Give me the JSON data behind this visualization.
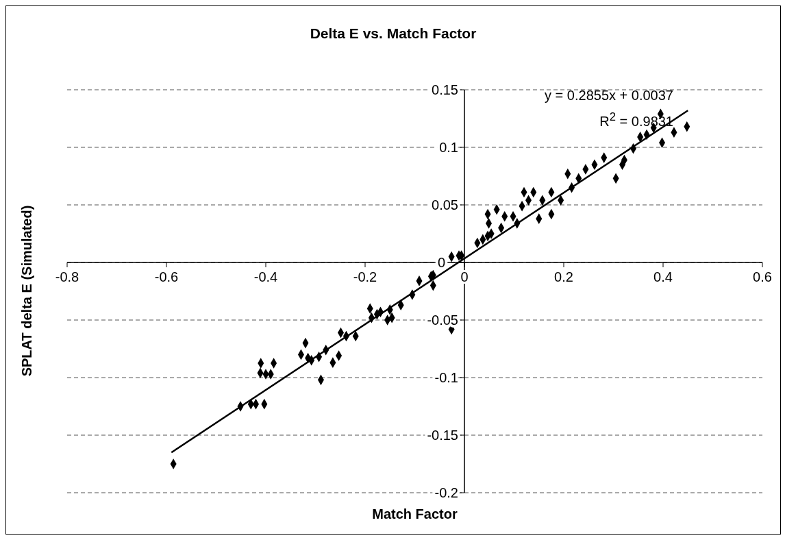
{
  "chart_data": {
    "type": "scatter",
    "title": "Delta E vs. Match Factor",
    "xlabel": "Match Factor",
    "ylabel": "SPLAT delta E (Simulated)",
    "annotations": [
      "y = 0.2855x + 0.0037",
      "R$^{2}$ = 0.9831"
    ],
    "xlim": [
      -0.8,
      0.6
    ],
    "xticks": [
      -0.8,
      -0.6,
      -0.4,
      -0.2,
      0,
      0.2,
      0.4,
      0.6
    ],
    "ylim": [
      -0.2,
      0.15
    ],
    "yticks": [
      -0.2,
      -0.15,
      -0.1,
      -0.05,
      0,
      0.05,
      0.1,
      0.15
    ],
    "grid": "y",
    "legend": false,
    "marker": "diamond",
    "series": [
      {
        "type": "scatter",
        "color": "#000000",
        "x": [
          -0.586,
          -0.451,
          -0.43,
          -0.42,
          -0.403,
          -0.41,
          -0.384,
          -0.411,
          -0.4,
          -0.39,
          -0.32,
          -0.329,
          -0.315,
          -0.308,
          -0.293,
          -0.279,
          -0.289,
          -0.265,
          -0.253,
          -0.249,
          -0.238,
          -0.219,
          -0.19,
          -0.187,
          -0.176,
          -0.169,
          -0.155,
          -0.15,
          -0.146,
          -0.128,
          -0.105,
          -0.091,
          -0.063,
          -0.063,
          -0.067,
          -0.026,
          -0.026,
          -0.011,
          -0.006,
          0.026,
          0.037,
          0.047,
          0.054,
          0.049,
          0.047,
          0.065,
          0.081,
          0.074,
          0.098,
          0.106,
          0.116,
          0.12,
          0.129,
          0.139,
          0.15,
          0.157,
          0.175,
          0.175,
          0.194,
          0.208,
          0.216,
          0.23,
          0.244,
          0.262,
          0.281,
          0.305,
          0.318,
          0.322,
          0.34,
          0.354,
          0.367,
          0.381,
          0.395,
          0.398,
          0.422,
          0.448
        ],
        "values": [
          -0.175,
          -0.125,
          -0.123,
          -0.123,
          -0.123,
          -0.0875,
          -0.0875,
          -0.096,
          -0.097,
          -0.097,
          -0.07,
          -0.08,
          -0.083,
          -0.085,
          -0.082,
          -0.076,
          -0.102,
          -0.087,
          -0.081,
          -0.061,
          -0.064,
          -0.064,
          -0.04,
          -0.048,
          -0.045,
          -0.043,
          -0.05,
          -0.041,
          -0.048,
          -0.037,
          -0.028,
          -0.016,
          -0.02,
          -0.011,
          -0.012,
          -0.058,
          0.005,
          0.006,
          0.006,
          0.017,
          0.02,
          0.023,
          0.025,
          0.034,
          0.042,
          0.046,
          0.04,
          0.03,
          0.04,
          0.034,
          0.049,
          0.061,
          0.054,
          0.061,
          0.038,
          0.054,
          0.042,
          0.061,
          0.054,
          0.077,
          0.065,
          0.073,
          0.081,
          0.085,
          0.091,
          0.073,
          0.085,
          0.089,
          0.099,
          0.109,
          0.111,
          0.117,
          0.129,
          0.104,
          0.113,
          0.118
        ]
      },
      {
        "type": "line",
        "color": "#000000",
        "marker": "none",
        "x": [
          -0.59,
          0.45
        ],
        "values": [
          -0.165,
          0.132
        ]
      }
    ]
  }
}
